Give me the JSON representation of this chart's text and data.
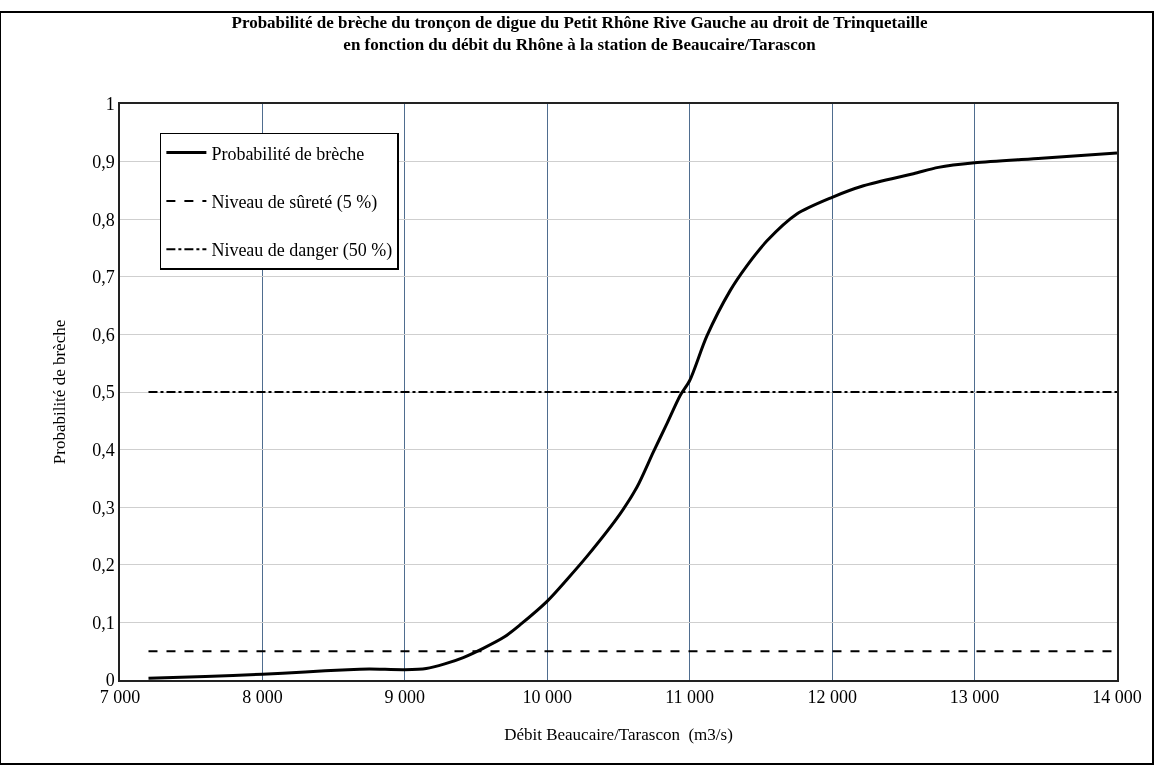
{
  "chart_data": {
    "type": "line",
    "title": "Probabilité de brèche du tronçon de digue du Petit Rhône Rive Gauche au droit de Trinquetaille\nen fonction du débit du Rhône à la station de Beaucaire/Tarascon",
    "xlabel": "Débit Beaucaire/Tarascon  (m3/s)",
    "ylabel": "Probabilité de brèche",
    "series": [
      {
        "name": "Probabilité de brèche",
        "color": "#000000",
        "line_style": "solid",
        "x": [
          7200,
          7600,
          8000,
          8300,
          8600,
          8750,
          9000,
          9150,
          9280,
          9410,
          9550,
          9700,
          9810,
          10000,
          10140,
          10280,
          10510,
          10630,
          10745,
          10840,
          10933,
          11000,
          11120,
          11284,
          11401,
          11541,
          11752,
          12000,
          12220,
          12571,
          12746,
          13000,
          13470,
          14000
        ],
        "values": [
          0.003,
          0.006,
          0.01,
          0.014,
          0.018,
          0.019,
          0.018,
          0.02,
          0.028,
          0.039,
          0.055,
          0.075,
          0.096,
          0.137,
          0.175,
          0.215,
          0.288,
          0.335,
          0.396,
          0.445,
          0.494,
          0.52,
          0.597,
          0.676,
          0.719,
          0.762,
          0.809,
          0.838,
          0.858,
          0.879,
          0.89,
          0.898,
          0.906,
          0.915
        ]
      }
    ],
    "ref_lines": [
      {
        "axis": "y",
        "value": 0.05,
        "label": "Niveau de sûreté (5 %)",
        "color": "#000000",
        "line_style": "dashed"
      },
      {
        "axis": "y",
        "value": 0.5,
        "label": "Niveau de danger (50 %)",
        "color": "#000000",
        "line_style": "dashdot"
      }
    ],
    "xlim": [
      7000,
      14000
    ],
    "xticks": [
      {
        "value": 7000,
        "label": "7 000"
      },
      {
        "value": 8000,
        "label": "8 000"
      },
      {
        "value": 9000,
        "label": "9 000"
      },
      {
        "value": 10000,
        "label": "10 000"
      },
      {
        "value": 11000,
        "label": "11 000"
      },
      {
        "value": 12000,
        "label": "12 000"
      },
      {
        "value": 13000,
        "label": "13 000"
      },
      {
        "value": 14000,
        "label": "14 000"
      }
    ],
    "ylim": [
      0,
      1
    ],
    "yticks": [
      0,
      {
        "value": 0.1,
        "label": "0,1"
      },
      {
        "value": 0.2,
        "label": "0,2"
      },
      {
        "value": 0.3,
        "label": "0,3"
      },
      {
        "value": 0.4,
        "label": "0,4"
      },
      {
        "value": 0.5,
        "label": "0,5"
      },
      {
        "value": 0.6,
        "label": "0,6"
      },
      {
        "value": 0.7,
        "label": "0,7"
      },
      {
        "value": 0.8,
        "label": "0,8"
      },
      {
        "value": 0.9,
        "label": "0,9"
      },
      1
    ],
    "grid": true,
    "legend": "top left",
    "marker": "none"
  }
}
